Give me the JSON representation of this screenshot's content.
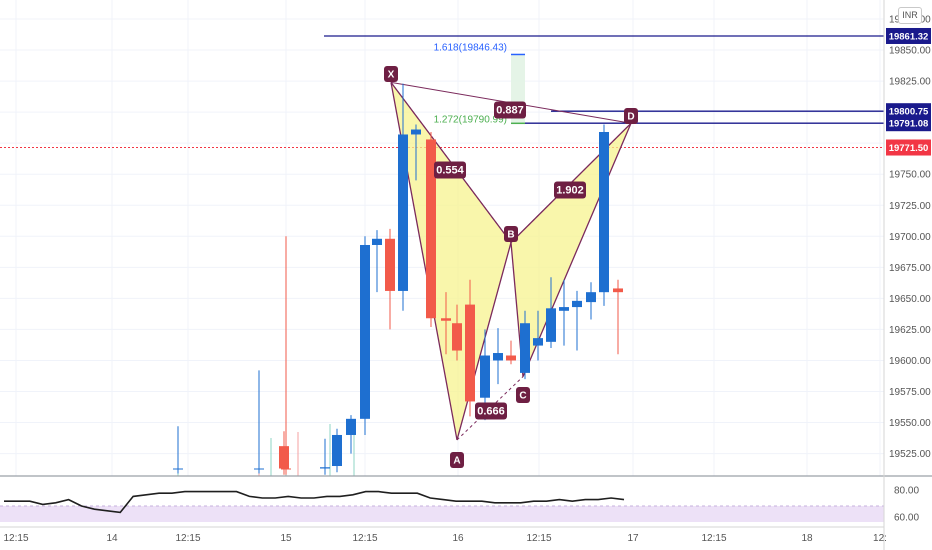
{
  "currency_button": "INR",
  "chart_data": {
    "type": "candlestick",
    "price_axis": {
      "ticks": [
        "19875.00",
        "19850.00",
        "19825.00",
        "19800.00",
        "19775.00",
        "19750.00",
        "19725.00",
        "19700.00",
        "19675.00",
        "19650.00",
        "19625.00",
        "19600.00",
        "19575.00",
        "19550.00",
        "19525.00"
      ],
      "tick_values": [
        19875,
        19850,
        19825,
        19800,
        19775,
        19750,
        19725,
        19700,
        19675,
        19650,
        19625,
        19600,
        19575,
        19550,
        19525
      ]
    },
    "time_axis": {
      "labels": [
        "12:15",
        "14",
        "12:15",
        "15",
        "12:15",
        "16",
        "12:15",
        "17",
        "12:15",
        "18",
        "12:"
      ]
    },
    "level_badges": [
      {
        "label": "19861.32",
        "value": 19861.32,
        "color": "#1a1a8c"
      },
      {
        "label": "19800.75",
        "value": 19800.75,
        "color": "#1a1a8c"
      },
      {
        "label": "19791.08",
        "value": 19791.08,
        "color": "#1a1a8c"
      },
      {
        "label": "19771.50",
        "value": 19771.5,
        "color": "#f23645"
      }
    ],
    "candles": [
      {
        "o": 19513,
        "h": 19547,
        "l": 19509,
        "c": 19513,
        "up": true
      },
      {
        "o": 19513,
        "h": 19592,
        "l": 19509,
        "c": 19513,
        "up": true
      },
      {
        "o": 19531,
        "h": 19543,
        "l": 19508,
        "c": 19513,
        "up": false
      },
      {
        "o": 19513,
        "h": 19700,
        "l": 19508,
        "c": 19513,
        "up": false
      },
      {
        "o": 19513,
        "h": 19537,
        "l": 19508,
        "c": 19514,
        "up": true
      },
      {
        "o": 19515,
        "h": 19545,
        "l": 19510,
        "c": 19540,
        "up": true
      },
      {
        "o": 19540,
        "h": 19556,
        "l": 19525,
        "c": 19553,
        "up": true
      },
      {
        "o": 19553,
        "h": 19700,
        "l": 19540,
        "c": 19693,
        "up": true
      },
      {
        "o": 19693,
        "h": 19705,
        "l": 19655,
        "c": 19698,
        "up": true
      },
      {
        "o": 19698,
        "h": 19706,
        "l": 19625,
        "c": 19656,
        "up": false
      },
      {
        "o": 19656,
        "h": 19823,
        "l": 19640,
        "c": 19782,
        "up": true
      },
      {
        "o": 19782,
        "h": 19790,
        "l": 19745,
        "c": 19786,
        "up": true
      },
      {
        "o": 19778,
        "h": 19784,
        "l": 19627,
        "c": 19634,
        "up": false
      },
      {
        "o": 19634,
        "h": 19655,
        "l": 19605,
        "c": 19632,
        "up": false
      },
      {
        "o": 19630,
        "h": 19645,
        "l": 19600,
        "c": 19608,
        "up": false
      },
      {
        "o": 19645,
        "h": 19665,
        "l": 19555,
        "c": 19567,
        "up": false
      },
      {
        "o": 19570,
        "h": 19625,
        "l": 19552,
        "c": 19604,
        "up": true
      },
      {
        "o": 19600,
        "h": 19626,
        "l": 19581,
        "c": 19606,
        "up": true
      },
      {
        "o": 19604,
        "h": 19616,
        "l": 19597,
        "c": 19600,
        "up": false
      },
      {
        "o": 19590,
        "h": 19640,
        "l": 19585,
        "c": 19630,
        "up": true
      },
      {
        "o": 19612,
        "h": 19640,
        "l": 19600,
        "c": 19618,
        "up": true
      },
      {
        "o": 19615,
        "h": 19667,
        "l": 19610,
        "c": 19642,
        "up": true
      },
      {
        "o": 19640,
        "h": 19665,
        "l": 19612,
        "c": 19643,
        "up": true
      },
      {
        "o": 19643,
        "h": 19656,
        "l": 19608,
        "c": 19648,
        "up": true
      },
      {
        "o": 19647,
        "h": 19663,
        "l": 19633,
        "c": 19655,
        "up": true
      },
      {
        "o": 19655,
        "h": 19668,
        "l": 19644,
        "c": 19666,
        "up": true
      },
      {
        "o": 19658,
        "h": 19665,
        "l": 19605,
        "c": 19655,
        "up": false
      },
      {
        "o": 19657,
        "h": 19790,
        "l": 19652,
        "c": 19784,
        "up": true
      }
    ],
    "pattern": {
      "points": [
        {
          "label": "X",
          "value": 19824
        },
        {
          "label": "A",
          "value": 19536
        },
        {
          "label": "B",
          "value": 19695
        },
        {
          "label": "C",
          "value": 19587
        },
        {
          "label": "D",
          "value": 19791
        }
      ],
      "ratios": [
        "0.554",
        "0.887",
        "0.666",
        "1.902"
      ]
    },
    "fib_levels": [
      {
        "label": "1.618(19846.43)",
        "value": 19846.43,
        "color": "#2962ff"
      },
      {
        "label": "1.272(19790.99)",
        "value": 19790.99,
        "color": "#4caf50"
      }
    ],
    "oscillator": {
      "ticks": [
        "80.00",
        "60.00"
      ],
      "tick_values": [
        80,
        60
      ],
      "band": [
        60,
        70
      ],
      "values": [
        73,
        73,
        73,
        71,
        72,
        74,
        70,
        68,
        67,
        66,
        76,
        77,
        78,
        78,
        79,
        79,
        79,
        79,
        79,
        76,
        75,
        75,
        76,
        75,
        75,
        76,
        76,
        77,
        79,
        79,
        78,
        78,
        78,
        75,
        74,
        73,
        73,
        73,
        72,
        72,
        72,
        73,
        73,
        74,
        73,
        74,
        74,
        75,
        74
      ]
    }
  }
}
